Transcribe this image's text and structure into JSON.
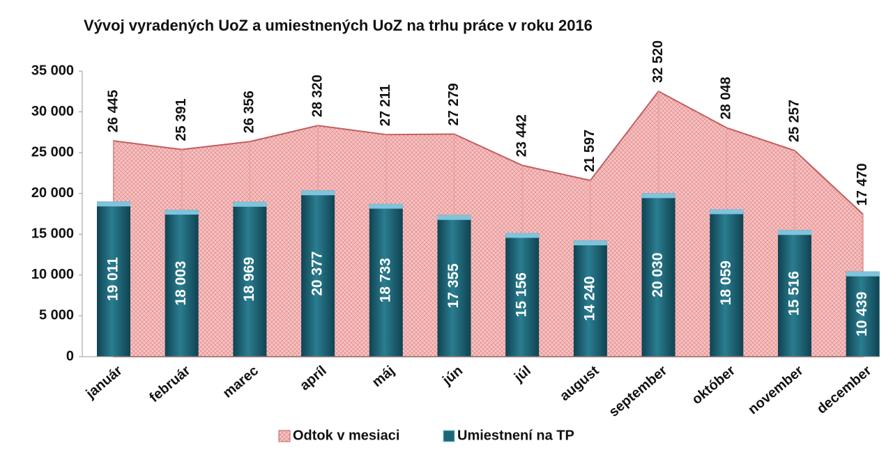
{
  "chart_data": {
    "type": "combo",
    "title": "Vývoj vyradených UoZ a umiestnených UoZ na  trhu práce v  roku 2016",
    "categories": [
      "január",
      "február",
      "marec",
      "apríl",
      "máj",
      "jún",
      "júl",
      "august",
      "september",
      "október",
      "november",
      "december"
    ],
    "series": [
      {
        "name": "Odtok v mesiaci",
        "type": "area",
        "color": "#f2b3b3",
        "values": [
          26445,
          25391,
          26356,
          28320,
          27211,
          27279,
          23442,
          21597,
          32520,
          28048,
          25257,
          17470
        ],
        "value_labels": [
          "26 445",
          "25 391",
          "26 356",
          "28 320",
          "27 211",
          "27 279",
          "23 442",
          "21 597",
          "32 520",
          "28 048",
          "25 257",
          "17 470"
        ]
      },
      {
        "name": "Umiestnení na TP",
        "type": "bar",
        "color": "#1d6677",
        "values": [
          19011,
          18003,
          18969,
          20377,
          18733,
          17355,
          15156,
          14240,
          20030,
          18059,
          15516,
          10439
        ],
        "value_labels": [
          "19 011",
          "18 003",
          "18 969",
          "20 377",
          "18 733",
          "17 355",
          "15 156",
          "14 240",
          "20 030",
          "18 059",
          "15 516",
          "10 439"
        ]
      }
    ],
    "ylim": [
      0,
      35000
    ],
    "yticks": [
      0,
      {
        "value": 5000,
        "label": "5 000"
      },
      {
        "value": 10000,
        "label": "10 000"
      },
      {
        "value": 15000,
        "label": "15 000"
      },
      {
        "value": 20000,
        "label": "20 000"
      },
      {
        "value": 25000,
        "label": "25 000"
      },
      {
        "value": 30000,
        "label": "30 000"
      },
      {
        "value": 35000,
        "label": "35 000"
      }
    ],
    "legend": "bottom"
  }
}
